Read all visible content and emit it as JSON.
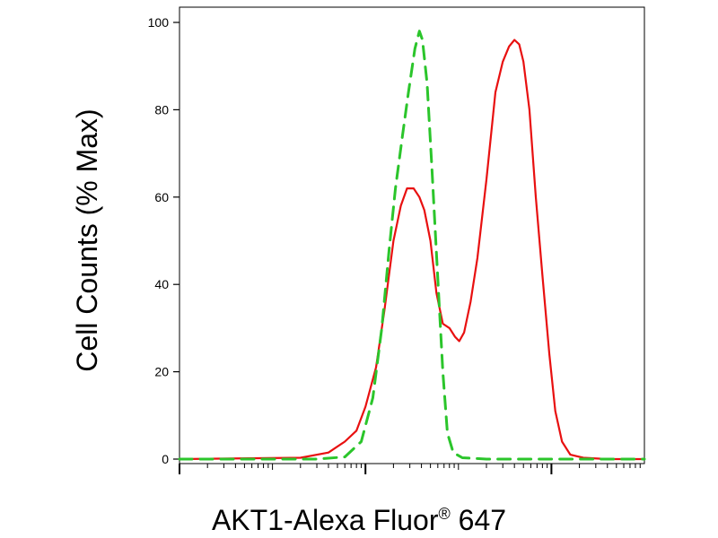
{
  "chart_data": {
    "type": "line",
    "title": "",
    "xlabel": {
      "prefix": "AKT1-Alexa Fluor",
      "superscript": "®",
      "suffix": " 647"
    },
    "ylabel": "Cell Counts (% Max)",
    "ylim": [
      0,
      100
    ],
    "xscale": "log",
    "xlim": [
      0.01,
      1000
    ],
    "y_ticks": [
      0,
      20,
      40,
      60,
      80,
      100
    ],
    "y_tick_labels": [
      "0",
      "20",
      "40",
      "60",
      "80",
      "100"
    ],
    "x_major_ticks": [
      0.01,
      1,
      100
    ],
    "x_tick_labels": [],
    "grid": false,
    "legend": "none",
    "series": [
      {
        "color": "#e81010",
        "style": "solid",
        "points": [
          [
            0.01,
            0
          ],
          [
            0.2,
            0.3
          ],
          [
            0.4,
            1.5
          ],
          [
            0.6,
            4
          ],
          [
            0.8,
            6.5
          ],
          [
            1.0,
            12
          ],
          [
            1.3,
            21
          ],
          [
            1.6,
            34
          ],
          [
            2.0,
            50
          ],
          [
            2.4,
            58
          ],
          [
            2.8,
            62
          ],
          [
            3.3,
            62
          ],
          [
            3.8,
            60
          ],
          [
            4.3,
            57
          ],
          [
            5.0,
            50
          ],
          [
            5.8,
            38
          ],
          [
            6.8,
            31
          ],
          [
            8.0,
            30
          ],
          [
            9.2,
            28
          ],
          [
            10.2,
            27
          ],
          [
            11.5,
            29
          ],
          [
            13.5,
            36
          ],
          [
            16,
            46
          ],
          [
            20,
            64
          ],
          [
            25,
            84
          ],
          [
            30,
            91
          ],
          [
            35,
            94.5
          ],
          [
            40,
            96
          ],
          [
            45,
            95
          ],
          [
            50,
            91
          ],
          [
            58,
            80
          ],
          [
            68,
            60
          ],
          [
            80,
            42
          ],
          [
            95,
            24
          ],
          [
            110,
            11
          ],
          [
            130,
            4
          ],
          [
            160,
            1
          ],
          [
            220,
            0.3
          ],
          [
            400,
            0
          ],
          [
            1000,
            0
          ]
        ]
      },
      {
        "color": "#2bc52b",
        "style": "dashed",
        "points": [
          [
            0.01,
            0
          ],
          [
            0.3,
            0
          ],
          [
            0.6,
            0.5
          ],
          [
            0.9,
            4
          ],
          [
            1.2,
            14
          ],
          [
            1.5,
            30
          ],
          [
            1.8,
            48
          ],
          [
            2.1,
            62
          ],
          [
            2.5,
            74
          ],
          [
            2.9,
            84
          ],
          [
            3.4,
            94
          ],
          [
            3.8,
            98
          ],
          [
            4.1,
            96
          ],
          [
            4.6,
            86
          ],
          [
            5.2,
            66
          ],
          [
            5.9,
            44
          ],
          [
            6.8,
            20
          ],
          [
            7.6,
            6
          ],
          [
            8.8,
            1.5
          ],
          [
            11,
            0.3
          ],
          [
            20,
            0
          ],
          [
            1000,
            0
          ]
        ]
      }
    ]
  }
}
